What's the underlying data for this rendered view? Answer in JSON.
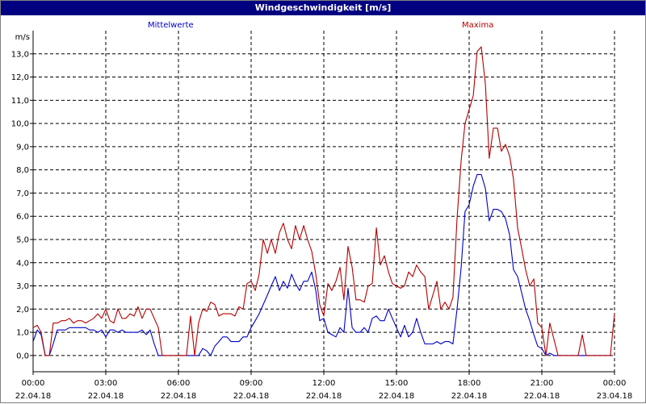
{
  "window": {
    "title": "Windgeschwindigkeit [m/s]"
  },
  "chart_data": {
    "type": "line",
    "title": "Windgeschwindigkeit [m/s]",
    "ylabel": "m/s",
    "ylim": [
      -0.7,
      14.0
    ],
    "yticks": [
      0,
      1,
      2,
      3,
      4,
      5,
      6,
      7,
      8,
      9,
      10,
      11,
      12,
      13
    ],
    "ytick_labels": [
      "0,0",
      "1,0",
      "2,0",
      "3,0",
      "4,0",
      "5,0",
      "6,0",
      "7,0",
      "8,0",
      "9,0",
      "10,0",
      "11,0",
      "12,0",
      "13,0"
    ],
    "xlim": [
      0,
      24
    ],
    "xticks": [
      0,
      3,
      6,
      9,
      12,
      15,
      18,
      21,
      24
    ],
    "xtick_times": [
      "00:00",
      "03:00",
      "06:00",
      "09:00",
      "12:00",
      "15:00",
      "18:00",
      "21:00",
      "00:00"
    ],
    "xtick_dates": [
      "22.04.18",
      "22.04.18",
      "22.04.18",
      "22.04.18",
      "22.04.18",
      "22.04.18",
      "22.04.18",
      "22.04.18",
      "23.04.18"
    ],
    "grid": true,
    "legend_placement": "top",
    "series": [
      {
        "name": "Mittelwerte",
        "color": "#0000c8",
        "x": [
          0.0,
          0.17,
          0.33,
          0.5,
          0.67,
          0.83,
          1.0,
          1.17,
          1.33,
          1.5,
          1.67,
          1.83,
          2.0,
          2.17,
          2.33,
          2.5,
          2.67,
          2.83,
          3.0,
          3.17,
          3.33,
          3.5,
          3.67,
          3.83,
          4.0,
          4.17,
          4.33,
          4.5,
          4.67,
          4.83,
          5.0,
          5.17,
          5.33,
          5.5,
          5.67,
          5.83,
          6.0,
          6.17,
          6.33,
          6.5,
          6.67,
          6.83,
          7.0,
          7.17,
          7.33,
          7.5,
          7.67,
          7.83,
          8.0,
          8.17,
          8.33,
          8.5,
          8.67,
          8.83,
          9.0,
          9.17,
          9.33,
          9.5,
          9.67,
          9.83,
          10.0,
          10.17,
          10.33,
          10.5,
          10.67,
          10.83,
          11.0,
          11.17,
          11.33,
          11.5,
          11.67,
          11.83,
          12.0,
          12.17,
          12.33,
          12.5,
          12.67,
          12.83,
          13.0,
          13.17,
          13.33,
          13.5,
          13.67,
          13.83,
          14.0,
          14.17,
          14.33,
          14.5,
          14.67,
          14.83,
          15.0,
          15.17,
          15.33,
          15.5,
          15.67,
          15.83,
          16.0,
          16.17,
          16.33,
          16.5,
          16.67,
          16.83,
          17.0,
          17.17,
          17.33,
          17.5,
          17.67,
          17.83,
          18.0,
          18.17,
          18.33,
          18.5,
          18.67,
          18.83,
          19.0,
          19.17,
          19.33,
          19.5,
          19.67,
          19.83,
          20.0,
          20.17,
          20.33,
          20.5,
          20.67,
          20.83,
          21.0,
          21.17,
          21.33,
          21.5,
          21.67,
          21.83,
          22.0,
          22.17,
          22.33,
          22.5,
          22.67,
          22.83,
          23.0,
          23.17,
          23.33,
          23.5,
          23.67,
          23.83
        ],
        "values": [
          0.6,
          1.1,
          0.9,
          0.0,
          0.0,
          0.5,
          1.1,
          1.1,
          1.1,
          1.2,
          1.2,
          1.2,
          1.2,
          1.2,
          1.1,
          1.1,
          1.0,
          1.1,
          0.8,
          1.1,
          1.1,
          1.0,
          1.1,
          1.0,
          1.0,
          1.0,
          1.0,
          1.1,
          0.9,
          1.1,
          0.5,
          0.0,
          0.0,
          0.0,
          0.0,
          0.0,
          0.0,
          0.0,
          0.0,
          0.0,
          0.0,
          0.0,
          0.3,
          0.2,
          0.0,
          0.4,
          0.6,
          0.8,
          0.8,
          0.6,
          0.6,
          0.6,
          0.8,
          0.8,
          1.2,
          1.5,
          1.8,
          2.2,
          2.6,
          3.0,
          3.4,
          2.8,
          3.2,
          2.9,
          3.5,
          3.1,
          2.8,
          3.2,
          3.2,
          3.6,
          2.8,
          1.5,
          1.6,
          1.0,
          0.9,
          0.8,
          1.2,
          1.0,
          2.9,
          1.2,
          1.0,
          1.0,
          1.2,
          1.0,
          1.6,
          1.7,
          1.5,
          1.5,
          2.0,
          1.6,
          1.2,
          0.8,
          1.3,
          0.8,
          1.0,
          1.6,
          1.0,
          0.5,
          0.5,
          0.5,
          0.6,
          0.5,
          0.6,
          0.6,
          0.5,
          2.0,
          3.8,
          6.2,
          6.5,
          7.3,
          7.8,
          7.8,
          7.2,
          5.8,
          6.3,
          6.3,
          6.2,
          5.9,
          5.2,
          3.7,
          3.4,
          2.7,
          2.0,
          1.5,
          0.9,
          0.4,
          0.3,
          0.0,
          0.1,
          0.0,
          0.0,
          0.0,
          0.0,
          0.0,
          0.0,
          0.0,
          0.0,
          0.0,
          0.0,
          0.0,
          0.0,
          0.0,
          0.0,
          0.0
        ]
      },
      {
        "name": "Maxima",
        "color": "#b40000",
        "x": [
          0.0,
          0.17,
          0.33,
          0.5,
          0.67,
          0.83,
          1.0,
          1.17,
          1.33,
          1.5,
          1.67,
          1.83,
          2.0,
          2.17,
          2.33,
          2.5,
          2.67,
          2.83,
          3.0,
          3.17,
          3.33,
          3.5,
          3.67,
          3.83,
          4.0,
          4.17,
          4.33,
          4.5,
          4.67,
          4.83,
          5.0,
          5.17,
          5.33,
          5.5,
          5.67,
          5.83,
          6.0,
          6.17,
          6.33,
          6.5,
          6.67,
          6.83,
          7.0,
          7.17,
          7.33,
          7.5,
          7.67,
          7.83,
          8.0,
          8.17,
          8.33,
          8.5,
          8.67,
          8.83,
          9.0,
          9.17,
          9.33,
          9.5,
          9.67,
          9.83,
          10.0,
          10.17,
          10.33,
          10.5,
          10.67,
          10.83,
          11.0,
          11.17,
          11.33,
          11.5,
          11.67,
          11.83,
          12.0,
          12.17,
          12.33,
          12.5,
          12.67,
          12.83,
          13.0,
          13.17,
          13.33,
          13.5,
          13.67,
          13.83,
          14.0,
          14.17,
          14.33,
          14.5,
          14.67,
          14.83,
          15.0,
          15.17,
          15.33,
          15.5,
          15.67,
          15.83,
          16.0,
          16.17,
          16.33,
          16.5,
          16.67,
          16.83,
          17.0,
          17.17,
          17.33,
          17.5,
          17.67,
          17.83,
          18.0,
          18.17,
          18.33,
          18.5,
          18.67,
          18.83,
          19.0,
          19.17,
          19.33,
          19.5,
          19.67,
          19.83,
          20.0,
          20.17,
          20.33,
          20.5,
          20.67,
          20.83,
          21.0,
          21.17,
          21.33,
          21.5,
          21.67,
          21.83,
          22.0,
          22.17,
          22.33,
          22.5,
          22.67,
          22.83,
          23.0,
          23.17,
          23.33,
          23.5,
          23.67,
          23.83,
          24.0
        ],
        "values": [
          1.2,
          1.3,
          1.0,
          0.0,
          0.0,
          1.4,
          1.4,
          1.5,
          1.5,
          1.6,
          1.4,
          1.5,
          1.5,
          1.4,
          1.5,
          1.6,
          1.8,
          1.6,
          2.0,
          1.5,
          1.4,
          2.0,
          1.6,
          1.6,
          1.8,
          1.7,
          2.1,
          1.6,
          2.0,
          2.0,
          1.6,
          1.2,
          0.0,
          0.0,
          0.0,
          0.0,
          0.0,
          0.0,
          0.0,
          1.7,
          0.0,
          1.4,
          2.0,
          1.9,
          2.3,
          2.2,
          1.7,
          1.8,
          1.8,
          1.8,
          1.7,
          2.1,
          2.0,
          3.1,
          3.2,
          2.8,
          3.5,
          5.0,
          4.4,
          5.0,
          4.4,
          5.3,
          5.7,
          5.0,
          4.6,
          5.6,
          5.0,
          5.6,
          5.0,
          4.5,
          3.5,
          2.2,
          1.7,
          3.1,
          2.8,
          3.2,
          3.8,
          2.4,
          4.7,
          3.8,
          2.4,
          2.4,
          2.3,
          3.0,
          3.1,
          5.5,
          3.9,
          4.3,
          3.6,
          3.1,
          3.0,
          2.9,
          3.0,
          3.6,
          3.4,
          3.9,
          3.6,
          3.4,
          2.0,
          2.6,
          3.2,
          2.0,
          2.3,
          2.0,
          2.5,
          5.9,
          8.4,
          10.0,
          10.6,
          11.2,
          13.1,
          13.3,
          11.7,
          8.5,
          9.8,
          9.8,
          8.8,
          9.1,
          8.6,
          7.6,
          5.5,
          4.6,
          3.7,
          3.0,
          3.3,
          1.4,
          1.2,
          0.0,
          1.4,
          0.7,
          0.0,
          0.0,
          0.0,
          0.0,
          0.0,
          0.0,
          0.9,
          0.0,
          0.0,
          0.0,
          0.0,
          0.0,
          0.0,
          0.0,
          1.8
        ]
      }
    ]
  }
}
